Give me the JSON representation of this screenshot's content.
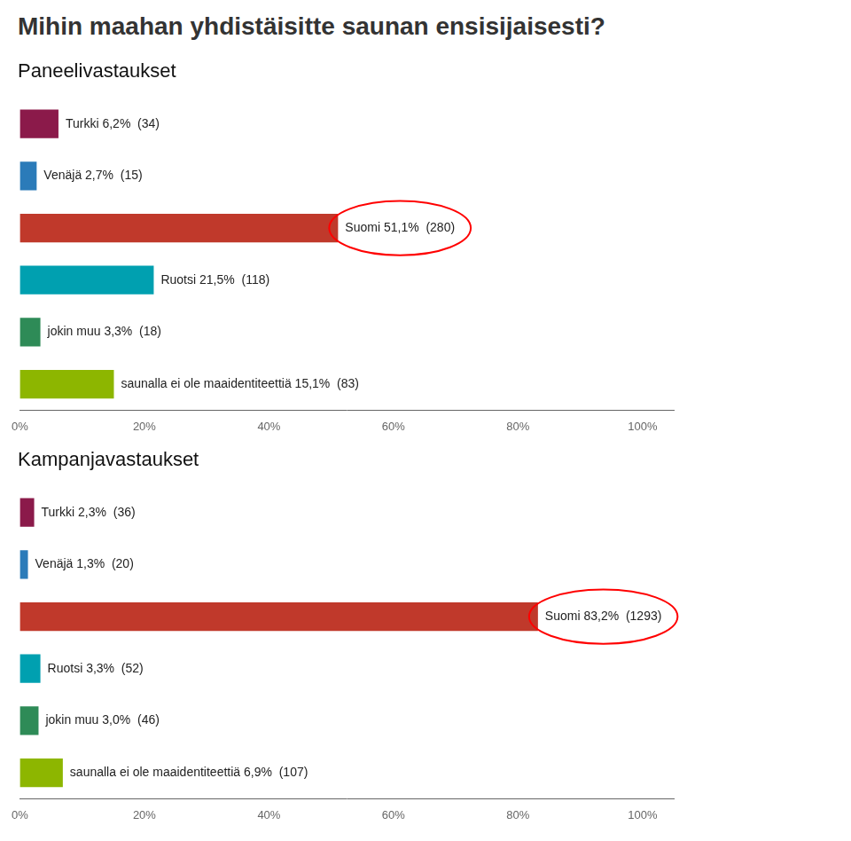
{
  "title": "Mihin maahan yhdistäisitte saunan ensisijaisesti?",
  "chart_data": [
    {
      "type": "bar",
      "orientation": "horizontal",
      "title": "Paneelivastaukset",
      "categories": [
        null,
        null,
        null,
        null,
        null,
        null
      ],
      "values": [
        6.2,
        2.7,
        51.1,
        21.5,
        3.3,
        15.1
      ],
      "value_labels": [
        "Turkki 6,2%  (34)",
        "Venäjä 2,7%  (15)",
        "Suomi 51,1%  (280)",
        "Ruotsi 21,5%  (118)",
        "jokin muu 3,3%  (18)",
        "saunalla ei ole maaidentiteettiä 15,1%  (83)"
      ],
      "colors": [
        "#8B1A4A",
        "#2B7BB9",
        "#C0392B",
        "#00A0B0",
        "#2E8B57",
        "#8DB600"
      ],
      "data_labels": true,
      "xlim": [
        0,
        105
      ],
      "xticks": [
        {
          "value": 0,
          "label": "0%"
        },
        {
          "value": 20,
          "label": "20%"
        },
        {
          "value": 40,
          "label": "40%"
        },
        {
          "value": 60,
          "label": "60%"
        },
        {
          "value": 80,
          "label": "80%"
        },
        {
          "value": 100,
          "label": "100%"
        }
      ],
      "tick_labels": "x",
      "grid": false
    },
    {
      "type": "bar",
      "orientation": "horizontal",
      "title": "Kampanjavastaukset",
      "categories": [
        null,
        null,
        null,
        null,
        null,
        null
      ],
      "values": [
        2.3,
        1.3,
        83.2,
        3.3,
        3.0,
        6.9
      ],
      "value_labels": [
        "Turkki 2,3%  (36)",
        "Venäjä 1,3%  (20)",
        "Suomi 83,2%  (1293)",
        "Ruotsi 3,3%  (52)",
        "jokin muu 3,0%  (46)",
        "saunalla ei ole maaidentiteettiä 6,9%  (107)"
      ],
      "colors": [
        "#8B1A4A",
        "#2B7BB9",
        "#C0392B",
        "#00A0B0",
        "#2E8B57",
        "#8DB600"
      ],
      "data_labels": true,
      "xlim": [
        0,
        105
      ],
      "xticks": [
        {
          "value": 0,
          "label": "0%"
        },
        {
          "value": 20,
          "label": "20%"
        },
        {
          "value": 40,
          "label": "40%"
        },
        {
          "value": 60,
          "label": "60%"
        },
        {
          "value": 80,
          "label": "80%"
        },
        {
          "value": 100,
          "label": "100%"
        }
      ],
      "tick_labels": "x",
      "grid": false
    }
  ]
}
